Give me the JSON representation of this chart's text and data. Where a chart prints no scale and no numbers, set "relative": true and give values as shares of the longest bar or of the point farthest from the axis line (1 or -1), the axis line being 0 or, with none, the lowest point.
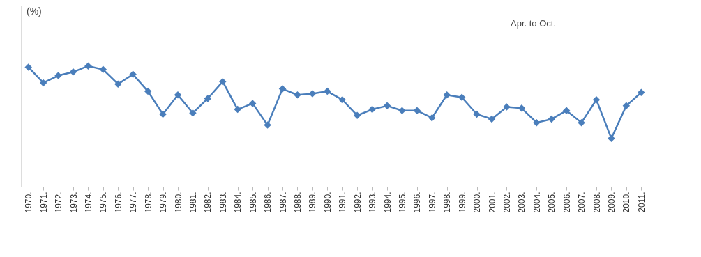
{
  "chart_data": {
    "type": "line",
    "relative": true,
    "annotations": [
      "(%)",
      "Apr. to Oct."
    ],
    "categories": [
      "1970.",
      "1971.",
      "1972.",
      "1973.",
      "1974.",
      "1975.",
      "1976.",
      "1977.",
      "1978.",
      "1979.",
      "1980.",
      "1981.",
      "1982.",
      "1983.",
      "1984.",
      "1985.",
      "1986.",
      "1987.",
      "1988.",
      "1989.",
      "1990.",
      "1991.",
      "1992.",
      "1993.",
      "1994.",
      "1995.",
      "1996.",
      "1997.",
      "1998.",
      "1999.",
      "2000.",
      "2001.",
      "2002.",
      "2003.",
      "2004.",
      "2005.",
      "2006.",
      "2007.",
      "2008.",
      "2009.",
      "2010.",
      "2011."
    ],
    "series": [
      {
        "color": "#4a7ebb",
        "values": [
          0.99,
          0.86,
          0.92,
          0.95,
          1.0,
          0.97,
          0.85,
          0.93,
          0.79,
          0.6,
          0.76,
          0.61,
          0.73,
          0.87,
          0.64,
          0.69,
          0.51,
          0.81,
          0.76,
          0.77,
          0.79,
          0.72,
          0.59,
          0.64,
          0.67,
          0.63,
          0.63,
          0.57,
          0.76,
          0.74,
          0.6,
          0.56,
          0.66,
          0.65,
          0.53,
          0.56,
          0.63,
          0.53,
          0.72,
          0.4,
          0.67,
          0.78
        ]
      }
    ],
    "marker": "diamond",
    "line_style": "solid"
  }
}
